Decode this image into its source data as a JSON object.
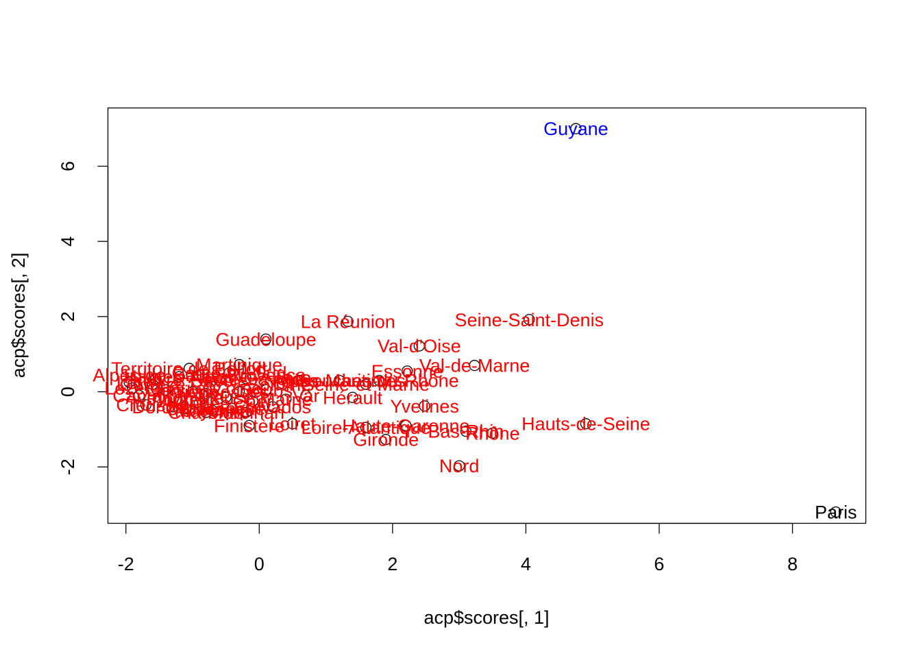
{
  "chart_data": {
    "type": "scatter",
    "title": "",
    "xlabel": "acp$scores[, 1]",
    "ylabel": "acp$scores[, 2]",
    "xlim": [
      -2.27,
      9.1
    ],
    "ylim": [
      -3.5,
      7.55
    ],
    "xticks": [
      -2,
      0,
      2,
      4,
      6,
      8
    ],
    "yticks": [
      -2,
      0,
      2,
      4,
      6
    ],
    "grid": false,
    "colors": {
      "point": "#000000",
      "label_default": "#ff0000",
      "label_highlight": "#0000ff",
      "label_outlier": "#000000",
      "axis": "#000000"
    },
    "points": [
      {
        "label": "Guyane",
        "x": 4.75,
        "y": 7.0,
        "color": "#0000ff"
      },
      {
        "label": "Paris",
        "x": 8.65,
        "y": -3.2,
        "color": "#000000"
      },
      {
        "label": "Seine-Saint-Denis",
        "x": 4.05,
        "y": 1.92,
        "color": "#ff0000"
      },
      {
        "label": "La Réunion",
        "x": 1.33,
        "y": 1.87,
        "color": "#ff0000"
      },
      {
        "label": "Guadeloupe",
        "x": 0.1,
        "y": 1.4,
        "color": "#ff0000"
      },
      {
        "label": "Val-d'Oise",
        "x": 2.4,
        "y": 1.22,
        "color": "#ff0000"
      },
      {
        "label": "Val-de-Marne",
        "x": 3.23,
        "y": 0.7,
        "color": "#ff0000"
      },
      {
        "label": "Essonne",
        "x": 2.22,
        "y": 0.55,
        "color": "#ff0000"
      },
      {
        "label": "Martinique",
        "x": -0.3,
        "y": 0.72,
        "color": "#ff0000"
      },
      {
        "label": "Territoire de Belfort",
        "x": -1.05,
        "y": 0.62,
        "color": "#ff0000"
      },
      {
        "label": "Bouches-du-Rhône",
        "x": 1.8,
        "y": 0.3,
        "color": "#ff0000"
      },
      {
        "label": "Seine-et-Marne",
        "x": 1.6,
        "y": 0.2,
        "color": "#ff0000"
      },
      {
        "label": "Alpes-Maritimes",
        "x": 1.2,
        "y": 0.3,
        "color": "#ff0000"
      },
      {
        "label": "Yvelines",
        "x": 2.48,
        "y": -0.38,
        "color": "#ff0000"
      },
      {
        "label": "Hérault",
        "x": 1.4,
        "y": -0.15,
        "color": "#ff0000"
      },
      {
        "label": "Var",
        "x": 0.7,
        "y": -0.1,
        "color": "#ff0000"
      },
      {
        "label": "Haute-Garonne",
        "x": 2.2,
        "y": -0.9,
        "color": "#ff0000"
      },
      {
        "label": "Loire-Atlantique",
        "x": 1.6,
        "y": -0.95,
        "color": "#ff0000"
      },
      {
        "label": "Hauts-de-Seine",
        "x": 4.9,
        "y": -0.85,
        "color": "#ff0000"
      },
      {
        "label": "Rhône",
        "x": 3.5,
        "y": -1.1,
        "color": "#ff0000"
      },
      {
        "label": "Bas-Rhin",
        "x": 3.1,
        "y": -1.05,
        "color": "#ff0000"
      },
      {
        "label": "Gironde",
        "x": 1.9,
        "y": -1.27,
        "color": "#ff0000"
      },
      {
        "label": "Finistère",
        "x": -0.15,
        "y": -0.9,
        "color": "#ff0000"
      },
      {
        "label": "Loiret",
        "x": 0.5,
        "y": -0.85,
        "color": "#ff0000"
      },
      {
        "label": "Nord",
        "x": 3.0,
        "y": -1.97,
        "color": "#ff0000"
      },
      {
        "label": "Charente",
        "x": -0.8,
        "y": -0.55,
        "color": "#ff0000"
      },
      {
        "label": "Creuse",
        "x": -1.7,
        "y": -0.35,
        "color": "#ff0000"
      },
      {
        "label": "Lozère",
        "x": -1.9,
        "y": 0.1,
        "color": "#ff0000"
      },
      {
        "label": "Cantal",
        "x": -1.8,
        "y": -0.1,
        "color": "#ff0000"
      },
      {
        "label": "Corrèze",
        "x": -1.6,
        "y": 0.2,
        "color": "#ff0000"
      },
      {
        "label": "Lot",
        "x": -1.95,
        "y": 0.25,
        "color": "#ff0000"
      },
      {
        "label": "Aveyron",
        "x": -1.5,
        "y": -0.15,
        "color": "#ff0000"
      },
      {
        "label": "Dordogne",
        "x": -1.3,
        "y": -0.4,
        "color": "#ff0000"
      },
      {
        "label": "Orne",
        "x": -1.1,
        "y": -0.45,
        "color": "#ff0000"
      },
      {
        "label": "Vendée",
        "x": -0.9,
        "y": -0.3,
        "color": "#ff0000"
      },
      {
        "label": "Mayenne",
        "x": -0.7,
        "y": -0.5,
        "color": "#ff0000"
      },
      {
        "label": "Manche",
        "x": -0.4,
        "y": -0.45,
        "color": "#ff0000"
      },
      {
        "label": "Morbihan",
        "x": -0.2,
        "y": -0.55,
        "color": "#ff0000"
      },
      {
        "label": "Calvados",
        "x": 0.2,
        "y": -0.4,
        "color": "#ff0000"
      },
      {
        "label": "Marne",
        "x": 0.4,
        "y": -0.2,
        "color": "#ff0000"
      },
      {
        "label": "Doubs",
        "x": 0.1,
        "y": 0.05,
        "color": "#ff0000"
      },
      {
        "label": "Somme",
        "x": 0.3,
        "y": 0.2,
        "color": "#ff0000"
      },
      {
        "label": "Oise",
        "x": 0.6,
        "y": 0.3,
        "color": "#ff0000"
      },
      {
        "label": "Haute-Savoie",
        "x": -0.2,
        "y": 0.35,
        "color": "#ff0000"
      },
      {
        "label": "Savoie",
        "x": -0.6,
        "y": 0.3,
        "color": "#ff0000"
      },
      {
        "label": "Hautes-Alpes",
        "x": -1.2,
        "y": 0.4,
        "color": "#ff0000"
      },
      {
        "label": "Alpes-de-Haute-Provence",
        "x": -0.9,
        "y": 0.45,
        "color": "#ff0000"
      },
      {
        "label": "Corse-du-Sud",
        "x": -0.45,
        "y": 0.5,
        "color": "#ff0000"
      },
      {
        "label": "Haute-Corse",
        "x": -0.75,
        "y": 0.1,
        "color": "#ff0000"
      },
      {
        "label": "Gers",
        "x": -1.4,
        "y": 0.05,
        "color": "#ff0000"
      },
      {
        "label": "Indre",
        "x": -1.2,
        "y": -0.2,
        "color": "#ff0000"
      },
      {
        "label": "Ariège",
        "x": -1.0,
        "y": 0.0,
        "color": "#ff0000"
      },
      {
        "label": "Nièvre",
        "x": -1.55,
        "y": 0.35,
        "color": "#ff0000"
      },
      {
        "label": "Meuse",
        "x": -0.5,
        "y": -0.15,
        "color": "#ff0000"
      },
      {
        "label": "Vosges",
        "x": -0.3,
        "y": 0.0,
        "color": "#ff0000"
      },
      {
        "label": "Allier",
        "x": -0.8,
        "y": -0.05,
        "color": "#ff0000"
      },
      {
        "label": "Cher",
        "x": -0.1,
        "y": -0.25,
        "color": "#ff0000"
      }
    ]
  }
}
